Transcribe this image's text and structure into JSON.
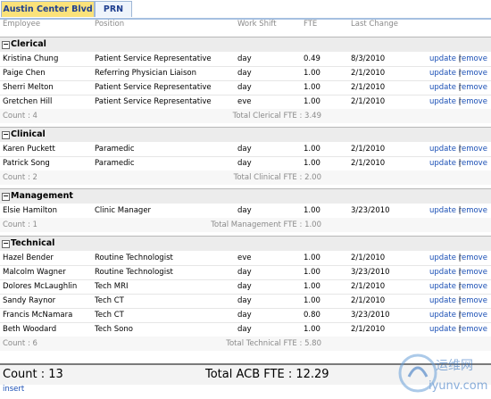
{
  "tabs": [
    "Austin Center Blvd",
    "PRN"
  ],
  "columns": [
    "Employee",
    "Position",
    "Work Shift",
    "FTE",
    "Last Change"
  ],
  "actions": {
    "update": "update",
    "sep": "|",
    "remove": "remove"
  },
  "groups": [
    {
      "name": "Clerical",
      "rows": [
        [
          "Kristina Chung",
          "Patient Service Representative",
          "day",
          "0.49",
          "8/3/2010"
        ],
        [
          "Paige Chen",
          "Referring Physician Liaison",
          "day",
          "1.00",
          "2/1/2010"
        ],
        [
          "Sherri Melton",
          "Patient Service Representative",
          "day",
          "1.00",
          "2/1/2010"
        ],
        [
          "Gretchen Hill",
          "Patient Service Representative",
          "eve",
          "1.00",
          "2/1/2010"
        ]
      ],
      "count": "Count : 4",
      "total": "Total Clerical FTE : 3.49"
    },
    {
      "name": "Clinical",
      "rows": [
        [
          "Karen Puckett",
          "Paramedic",
          "day",
          "1.00",
          "2/1/2010"
        ],
        [
          "Patrick Song",
          "Paramedic",
          "day",
          "1.00",
          "2/1/2010"
        ]
      ],
      "count": "Count : 2",
      "total": "Total Clinical FTE : 2.00"
    },
    {
      "name": "Management",
      "rows": [
        [
          "Elsie Hamilton",
          "Clinic Manager",
          "day",
          "1.00",
          "3/23/2010"
        ]
      ],
      "count": "Count : 1",
      "total": "Total Management FTE : 1.00"
    },
    {
      "name": "Technical",
      "rows": [
        [
          "Hazel Bender",
          "Routine Technologist",
          "eve",
          "1.00",
          "2/1/2010"
        ],
        [
          "Malcolm Wagner",
          "Routine Technologist",
          "day",
          "1.00",
          "3/23/2010"
        ],
        [
          "Dolores McLaughlin",
          "Tech MRI",
          "day",
          "1.00",
          "2/1/2010"
        ],
        [
          "Sandy Raynor",
          "Tech CT",
          "day",
          "1.00",
          "2/1/2010"
        ],
        [
          "Francis McNamara",
          "Tech CT",
          "day",
          "0.80",
          "3/23/2010"
        ],
        [
          "Beth Woodard",
          "Tech Sono",
          "day",
          "1.00",
          "2/1/2010"
        ]
      ],
      "count": "Count : 6",
      "total": "Total Technical FTE : 5.80"
    }
  ],
  "footer": {
    "count": "Count : 13",
    "total": "Total ACB FTE : 12.29"
  },
  "insert": "insert",
  "watermark": {
    "cn": "运维网",
    "url": "iyunv.com"
  }
}
